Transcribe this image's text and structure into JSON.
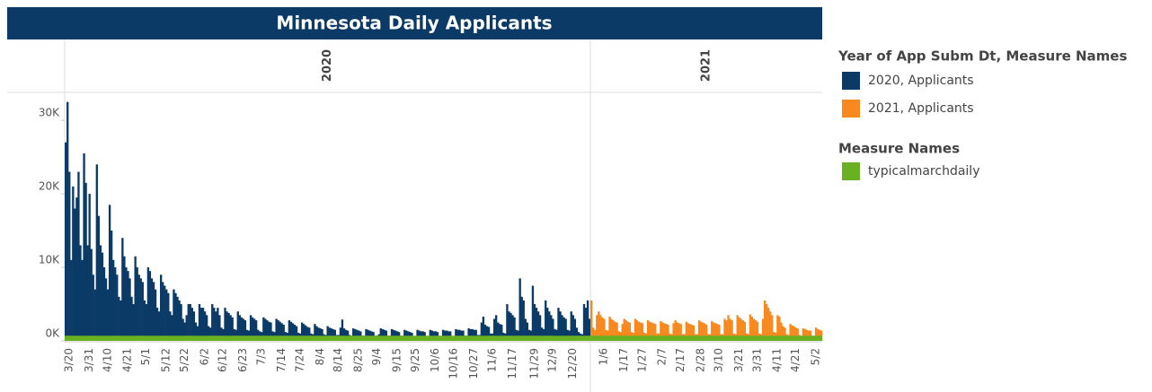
{
  "chart_data": {
    "type": "bar",
    "title": "Minnesota Daily Applicants",
    "ylim": [
      0,
      33800
    ],
    "yticks": [
      {
        "value": 0,
        "label": "0K"
      },
      {
        "value": 10000,
        "label": "10K"
      },
      {
        "value": 20000,
        "label": "20K"
      },
      {
        "value": 30000,
        "label": "30K"
      }
    ],
    "legend_title": "Year of App Subm Dt, Measure Names",
    "reference_title": "Measure Names",
    "reference": {
      "name": "typicalmarchdaily",
      "color": "#6ab023",
      "value": 700
    },
    "panels": [
      {
        "header": "2020",
        "name": "2020, Applicants",
        "color": "#0b3a66",
        "categories": [
          "3/20",
          null,
          null,
          null,
          null,
          null,
          null,
          null,
          null,
          null,
          null,
          "3/31",
          null,
          null,
          null,
          null,
          null,
          null,
          null,
          null,
          null,
          "4/10",
          null,
          null,
          null,
          null,
          null,
          null,
          null,
          null,
          null,
          null,
          "4/21",
          null,
          null,
          null,
          null,
          null,
          null,
          null,
          null,
          null,
          "5/1",
          null,
          null,
          null,
          null,
          null,
          null,
          null,
          null,
          null,
          null,
          "5/12",
          null,
          null,
          null,
          null,
          null,
          null,
          null,
          null,
          null,
          "5/22",
          null,
          null,
          null,
          null,
          null,
          null,
          null,
          null,
          null,
          null,
          "6/2",
          null,
          null,
          null,
          null,
          null,
          null,
          null,
          null,
          null,
          "6/12",
          null,
          null,
          null,
          null,
          null,
          null,
          null,
          null,
          null,
          null,
          "6/23",
          null,
          null,
          null,
          null,
          null,
          null,
          null,
          null,
          null,
          "7/3",
          null,
          null,
          null,
          null,
          null,
          null,
          null,
          null,
          null,
          null,
          "7/14",
          null,
          null,
          null,
          null,
          null,
          null,
          null,
          null,
          null,
          "7/24",
          null,
          null,
          null,
          null,
          null,
          null,
          null,
          null,
          null,
          null,
          "8/4",
          null,
          null,
          null,
          null,
          null,
          null,
          null,
          null,
          null,
          "8/14",
          null,
          null,
          null,
          null,
          null,
          null,
          null,
          null,
          null,
          null,
          "8/25",
          null,
          null,
          null,
          null,
          null,
          null,
          null,
          null,
          null,
          "9/4",
          null,
          null,
          null,
          null,
          null,
          null,
          null,
          null,
          null,
          null,
          "9/15",
          null,
          null,
          null,
          null,
          null,
          null,
          null,
          null,
          null,
          "9/25",
          null,
          null,
          null,
          null,
          null,
          null,
          null,
          null,
          null,
          null,
          "10/6",
          null,
          null,
          null,
          null,
          null,
          null,
          null,
          null,
          null,
          "10/16",
          null,
          null,
          null,
          null,
          null,
          null,
          null,
          null,
          null,
          null,
          "10/27",
          null,
          null,
          null,
          null,
          null,
          null,
          null,
          null,
          null,
          "11/6",
          null,
          null,
          null,
          null,
          null,
          null,
          null,
          null,
          null,
          null,
          "11/17",
          null,
          null,
          null,
          null,
          null,
          null,
          null,
          null,
          null,
          null,
          null,
          "11/29",
          null,
          null,
          null,
          null,
          null,
          null,
          null,
          null,
          null,
          "12/9",
          null,
          null,
          null,
          null,
          null,
          null,
          null,
          null,
          null,
          null,
          "12/20",
          null,
          null,
          null,
          null,
          null,
          null,
          null,
          null,
          null,
          null,
          null
        ],
        "values": [
          27000,
          32500,
          23000,
          11000,
          21000,
          18000,
          19500,
          23000,
          13000,
          11000,
          25500,
          21500,
          13000,
          20000,
          12500,
          9000,
          7000,
          24000,
          17000,
          13000,
          12000,
          10000,
          8500,
          7000,
          18500,
          15000,
          11000,
          10000,
          9000,
          6000,
          5500,
          14000,
          11500,
          10000,
          9500,
          8500,
          6000,
          5000,
          11500,
          10000,
          9000,
          8500,
          8000,
          5500,
          5000,
          10000,
          9500,
          8500,
          8000,
          7000,
          4500,
          4000,
          9000,
          8000,
          7500,
          7000,
          6500,
          4000,
          3500,
          7000,
          6500,
          6000,
          5500,
          5000,
          3000,
          2500,
          3500,
          5000,
          5000,
          4500,
          4000,
          2500,
          2000,
          5000,
          4500,
          4500,
          4000,
          3500,
          2000,
          1800,
          5000,
          4500,
          4000,
          4500,
          3500,
          1800,
          1600,
          4500,
          4000,
          3800,
          3500,
          3200,
          1600,
          1500,
          4000,
          3500,
          3200,
          3000,
          2800,
          1500,
          1400,
          3500,
          3200,
          3000,
          2800,
          1500,
          1300,
          1200,
          3200,
          3000,
          2800,
          2600,
          2500,
          1300,
          1200,
          3000,
          2800,
          2600,
          2400,
          2200,
          1200,
          1100,
          2800,
          2600,
          2400,
          2200,
          2000,
          1100,
          1000,
          2500,
          2300,
          2100,
          1900,
          1800,
          1000,
          900,
          2300,
          2000,
          1800,
          1700,
          1600,
          900,
          800,
          2000,
          1800,
          1700,
          1600,
          1500,
          800,
          800,
          1800,
          2900,
          1700,
          1500,
          1400,
          800,
          700,
          1700,
          1600,
          1500,
          1400,
          1300,
          700,
          700,
          1600,
          1500,
          1400,
          1300,
          1200,
          700,
          700,
          900,
          1700,
          1600,
          1500,
          1400,
          700,
          700,
          1600,
          1500,
          1400,
          1300,
          1200,
          700,
          700,
          1500,
          1400,
          1300,
          1200,
          1100,
          600,
          600,
          1500,
          1400,
          1300,
          1300,
          1200,
          600,
          600,
          1500,
          1400,
          1300,
          1300,
          1200,
          600,
          600,
          1500,
          1400,
          1400,
          1300,
          1300,
          600,
          600,
          1600,
          1500,
          1500,
          1400,
          1400,
          700,
          700,
          1700,
          1600,
          1600,
          1500,
          1500,
          800,
          800,
          2500,
          3300,
          2200,
          2000,
          1900,
          1000,
          1000,
          3000,
          3500,
          2500,
          2300,
          2200,
          1100,
          1000,
          5000,
          4000,
          3800,
          3500,
          3200,
          1500,
          1400,
          8500,
          6000,
          5500,
          3000,
          2500,
          1500,
          1400,
          7500,
          5000,
          4500,
          4000,
          3500,
          1800,
          1600,
          5500,
          4500,
          4000,
          3500,
          3000,
          1600,
          1500,
          4500,
          4000,
          3500,
          3200,
          3000,
          1500,
          1400,
          4000,
          3500,
          3000,
          1800,
          1200,
          1000,
          900,
          5000,
          4500,
          5500,
          3000
        ]
      },
      {
        "header": "2021",
        "name": "2021, Applicants",
        "color": "#f7891e",
        "categories": [
          null,
          null,
          null,
          null,
          null,
          "1/6",
          null,
          null,
          null,
          null,
          null,
          null,
          null,
          null,
          null,
          null,
          "1/17",
          null,
          null,
          null,
          null,
          null,
          null,
          null,
          null,
          null,
          "1/27",
          null,
          null,
          null,
          null,
          null,
          null,
          null,
          null,
          null,
          null,
          "2/7",
          null,
          null,
          null,
          null,
          null,
          null,
          null,
          null,
          null,
          "2/17",
          null,
          null,
          null,
          null,
          null,
          null,
          null,
          null,
          null,
          null,
          "2/28",
          null,
          null,
          null,
          null,
          null,
          null,
          null,
          null,
          null,
          "3/10",
          null,
          null,
          null,
          null,
          null,
          null,
          null,
          null,
          null,
          null,
          "3/21",
          null,
          null,
          null,
          null,
          null,
          null,
          null,
          null,
          null,
          "3/31",
          null,
          null,
          null,
          null,
          null,
          null,
          null,
          null,
          null,
          null,
          "4/11",
          null,
          null,
          null,
          null,
          null,
          null,
          null,
          null,
          null,
          "4/21",
          null,
          null,
          null,
          null,
          null,
          null,
          null,
          null,
          null,
          null,
          "5/2",
          null,
          null,
          null,
          null,
          null
        ],
        "values": [
          5500,
          1800,
          1500,
          3500,
          4000,
          3500,
          3200,
          3000,
          1500,
          1400,
          3300,
          3000,
          2800,
          2600,
          2500,
          1300,
          1200,
          2300,
          3000,
          2800,
          2600,
          2500,
          1200,
          1100,
          3000,
          2800,
          2600,
          2500,
          2400,
          1100,
          1000,
          2800,
          2600,
          2500,
          2400,
          2300,
          1000,
          1000,
          2700,
          2500,
          2400,
          2300,
          2200,
          1000,
          900,
          2400,
          2800,
          2500,
          2400,
          2300,
          900,
          900,
          2600,
          2400,
          2300,
          2200,
          2100,
          900,
          900,
          2800,
          2600,
          2500,
          2400,
          2200,
          900,
          900,
          2700,
          2500,
          2400,
          2300,
          2200,
          900,
          900,
          3000,
          2800,
          3500,
          3000,
          2800,
          1000,
          900,
          3500,
          3200,
          3000,
          2800,
          2600,
          1000,
          900,
          3600,
          3300,
          3000,
          2800,
          2600,
          1000,
          900,
          3000,
          5500,
          5000,
          4500,
          4000,
          3500,
          1200,
          1100,
          3500,
          3300,
          2500,
          2000,
          1800,
          900,
          800,
          2300,
          2100,
          2000,
          1800,
          1700,
          800,
          700,
          1700,
          1600,
          1500,
          1400,
          1400,
          700,
          600,
          1800,
          1600,
          1500,
          1400
        ]
      }
    ]
  }
}
